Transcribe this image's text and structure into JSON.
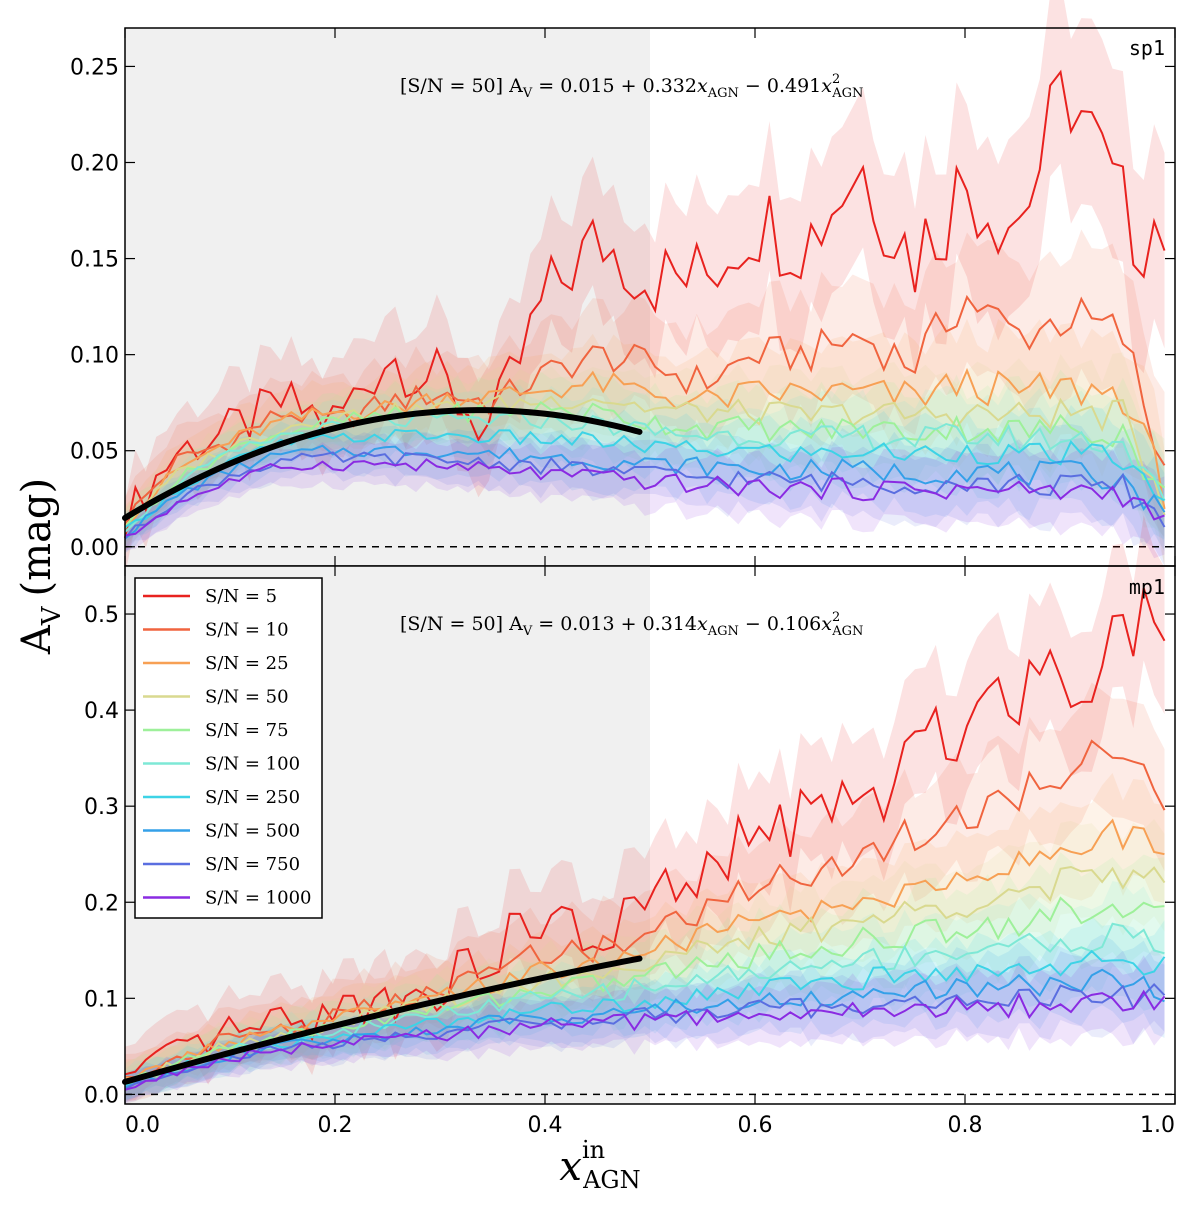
{
  "figure": {
    "ylabel_main": "A",
    "ylabel_sub": "V",
    "ylabel_unit": "(mag)",
    "xlabel_main": "x",
    "xlabel_sup": "in",
    "xlabel_sub": "AGN"
  },
  "colors": {
    "shade": "#f0f0f0",
    "fit": "#000000",
    "series": [
      "#e8221f",
      "#f0643f",
      "#f7a054",
      "#d9d98f",
      "#9ef09a",
      "#7ee8d6",
      "#3dd3e6",
      "#34a0e8",
      "#5a6ee0",
      "#8a2be2"
    ]
  },
  "chart_data": [
    {
      "type": "line",
      "panel": "sp1",
      "tag": "sp1",
      "annotation": "[S/N = 50]  A_V = 0.015 + 0.332 x_AGN − 0.491 x²_AGN",
      "equation": {
        "prefix": "[S/N = 50]  A",
        "v_sub": "V",
        "body": " = 0.015 + 0.332",
        "x1": "x",
        "x1_sub": "AGN",
        "minus": " − 0.491",
        "x2": "x",
        "x2_sup": "2",
        "x2_sub": "AGN"
      },
      "fit": {
        "a": 0.015,
        "b": 0.332,
        "c": -0.491,
        "x_range": [
          0,
          0.49
        ]
      },
      "shaded_region": [
        0,
        0.5
      ],
      "xlim": [
        0,
        1.0
      ],
      "ylim": [
        -0.01,
        0.27
      ],
      "yticks": [
        0.0,
        0.05,
        0.1,
        0.15,
        0.2,
        0.25
      ],
      "ytick_labels": [
        "0.00",
        "0.05",
        "0.10",
        "0.15",
        "0.20",
        "0.25"
      ],
      "x": [
        0,
        0.05,
        0.1,
        0.15,
        0.2,
        0.25,
        0.3,
        0.35,
        0.4,
        0.45,
        0.5,
        0.55,
        0.6,
        0.65,
        0.7,
        0.75,
        0.8,
        0.85,
        0.9,
        0.95,
        0.99
      ],
      "series": [
        {
          "name": "S/N = 5",
          "values": [
            0.015,
            0.05,
            0.06,
            0.075,
            0.065,
            0.1,
            0.085,
            0.06,
            0.13,
            0.16,
            0.14,
            0.14,
            0.17,
            0.16,
            0.2,
            0.15,
            0.19,
            0.17,
            0.24,
            0.17,
            0.17
          ],
          "band": 0.02
        },
        {
          "name": "S/N = 10",
          "values": [
            0.014,
            0.045,
            0.055,
            0.07,
            0.065,
            0.075,
            0.08,
            0.075,
            0.09,
            0.1,
            0.095,
            0.085,
            0.1,
            0.1,
            0.11,
            0.095,
            0.13,
            0.11,
            0.12,
            0.11,
            0.04
          ],
          "band": 0.015
        },
        {
          "name": "S/N = 25",
          "values": [
            0.013,
            0.04,
            0.055,
            0.065,
            0.07,
            0.072,
            0.078,
            0.078,
            0.082,
            0.085,
            0.08,
            0.075,
            0.08,
            0.08,
            0.08,
            0.078,
            0.085,
            0.08,
            0.082,
            0.08,
            0.03
          ],
          "band": 0.012
        },
        {
          "name": "S/N = 50",
          "values": [
            0.012,
            0.038,
            0.052,
            0.062,
            0.068,
            0.07,
            0.072,
            0.074,
            0.076,
            0.078,
            0.072,
            0.07,
            0.07,
            0.068,
            0.07,
            0.068,
            0.07,
            0.068,
            0.07,
            0.068,
            0.025
          ],
          "band": 0.01
        },
        {
          "name": "S/N = 75",
          "values": [
            0.011,
            0.035,
            0.05,
            0.06,
            0.065,
            0.068,
            0.07,
            0.07,
            0.072,
            0.07,
            0.065,
            0.062,
            0.062,
            0.06,
            0.062,
            0.06,
            0.062,
            0.06,
            0.062,
            0.06,
            0.025
          ],
          "band": 0.01
        },
        {
          "name": "S/N = 100",
          "values": [
            0.01,
            0.033,
            0.048,
            0.058,
            0.062,
            0.065,
            0.066,
            0.066,
            0.066,
            0.064,
            0.06,
            0.058,
            0.058,
            0.056,
            0.058,
            0.056,
            0.058,
            0.056,
            0.056,
            0.055,
            0.022
          ],
          "band": 0.009
        },
        {
          "name": "S/N = 250",
          "values": [
            0.008,
            0.03,
            0.044,
            0.054,
            0.056,
            0.058,
            0.058,
            0.057,
            0.056,
            0.055,
            0.052,
            0.05,
            0.05,
            0.048,
            0.05,
            0.048,
            0.05,
            0.048,
            0.048,
            0.046,
            0.02
          ],
          "band": 0.008
        },
        {
          "name": "S/N = 500",
          "values": [
            0.006,
            0.027,
            0.04,
            0.048,
            0.05,
            0.05,
            0.05,
            0.048,
            0.047,
            0.045,
            0.043,
            0.042,
            0.04,
            0.04,
            0.04,
            0.038,
            0.04,
            0.038,
            0.038,
            0.036,
            0.016
          ],
          "band": 0.008
        },
        {
          "name": "S/N = 750",
          "values": [
            0.005,
            0.025,
            0.037,
            0.045,
            0.046,
            0.046,
            0.045,
            0.044,
            0.042,
            0.04,
            0.038,
            0.036,
            0.035,
            0.034,
            0.034,
            0.033,
            0.034,
            0.032,
            0.032,
            0.031,
            0.014
          ],
          "band": 0.008
        },
        {
          "name": "S/N = 1000",
          "values": [
            0.004,
            0.023,
            0.034,
            0.042,
            0.043,
            0.043,
            0.042,
            0.04,
            0.038,
            0.036,
            0.034,
            0.032,
            0.031,
            0.03,
            0.03,
            0.03,
            0.03,
            0.029,
            0.029,
            0.028,
            0.012
          ],
          "band": 0.008
        }
      ]
    },
    {
      "type": "line",
      "panel": "mp1",
      "tag": "mp1",
      "annotation": "[S/N = 50]  A_V = 0.013 + 0.314 x_AGN − 0.106 x²_AGN",
      "equation": {
        "prefix": "[S/N = 50]  A",
        "v_sub": "V",
        "body": " = 0.013 + 0.314",
        "x1": "x",
        "x1_sub": "AGN",
        "minus": " − 0.106",
        "x2": "x",
        "x2_sup": "2",
        "x2_sub": "AGN"
      },
      "fit": {
        "a": 0.013,
        "b": 0.314,
        "c": -0.106,
        "x_range": [
          0,
          0.49
        ]
      },
      "shaded_region": [
        0,
        0.5
      ],
      "xlim": [
        0,
        1.0
      ],
      "ylim": [
        -0.01,
        0.55
      ],
      "yticks": [
        0.0,
        0.1,
        0.2,
        0.3,
        0.4,
        0.5
      ],
      "ytick_labels": [
        "0.0",
        "0.1",
        "0.2",
        "0.3",
        "0.4",
        "0.5"
      ],
      "xticks": [
        0.0,
        0.2,
        0.4,
        0.6,
        0.8,
        1.0
      ],
      "xtick_labels": [
        "0.0",
        "0.2",
        "0.4",
        "0.6",
        "0.8",
        "1.0"
      ],
      "x": [
        0,
        0.05,
        0.1,
        0.15,
        0.2,
        0.25,
        0.3,
        0.35,
        0.4,
        0.45,
        0.5,
        0.55,
        0.6,
        0.65,
        0.7,
        0.75,
        0.8,
        0.85,
        0.9,
        0.95,
        0.99
      ],
      "series": [
        {
          "name": "S/N = 5",
          "values": [
            0.015,
            0.04,
            0.065,
            0.07,
            0.085,
            0.1,
            0.11,
            0.15,
            0.18,
            0.16,
            0.2,
            0.22,
            0.27,
            0.29,
            0.3,
            0.34,
            0.4,
            0.43,
            0.44,
            0.48,
            0.52
          ],
          "band": 0.03
        },
        {
          "name": "S/N = 10",
          "values": [
            0.014,
            0.038,
            0.06,
            0.068,
            0.08,
            0.095,
            0.105,
            0.13,
            0.15,
            0.15,
            0.17,
            0.19,
            0.22,
            0.23,
            0.25,
            0.27,
            0.29,
            0.31,
            0.34,
            0.37,
            0.31
          ],
          "band": 0.025
        },
        {
          "name": "S/N = 25",
          "values": [
            0.013,
            0.036,
            0.055,
            0.065,
            0.077,
            0.09,
            0.1,
            0.115,
            0.13,
            0.135,
            0.15,
            0.165,
            0.18,
            0.19,
            0.2,
            0.21,
            0.23,
            0.24,
            0.26,
            0.27,
            0.25
          ],
          "band": 0.02
        },
        {
          "name": "S/N = 50",
          "values": [
            0.012,
            0.034,
            0.052,
            0.062,
            0.073,
            0.085,
            0.095,
            0.11,
            0.12,
            0.125,
            0.14,
            0.15,
            0.16,
            0.17,
            0.18,
            0.19,
            0.2,
            0.21,
            0.22,
            0.23,
            0.22
          ],
          "band": 0.02
        },
        {
          "name": "S/N = 75",
          "values": [
            0.011,
            0.032,
            0.05,
            0.06,
            0.07,
            0.08,
            0.09,
            0.1,
            0.11,
            0.115,
            0.125,
            0.135,
            0.145,
            0.15,
            0.16,
            0.165,
            0.175,
            0.18,
            0.19,
            0.2,
            0.18
          ],
          "band": 0.02
        },
        {
          "name": "S/N = 100",
          "values": [
            0.01,
            0.03,
            0.047,
            0.057,
            0.066,
            0.075,
            0.083,
            0.092,
            0.1,
            0.105,
            0.112,
            0.12,
            0.128,
            0.132,
            0.14,
            0.145,
            0.15,
            0.155,
            0.16,
            0.165,
            0.15
          ],
          "band": 0.018
        },
        {
          "name": "S/N = 250",
          "values": [
            0.009,
            0.028,
            0.044,
            0.053,
            0.06,
            0.068,
            0.075,
            0.082,
            0.088,
            0.092,
            0.098,
            0.104,
            0.11,
            0.114,
            0.12,
            0.124,
            0.128,
            0.132,
            0.136,
            0.14,
            0.13
          ],
          "band": 0.015
        },
        {
          "name": "S/N = 500",
          "values": [
            0.008,
            0.026,
            0.041,
            0.05,
            0.056,
            0.063,
            0.069,
            0.075,
            0.08,
            0.084,
            0.088,
            0.092,
            0.097,
            0.1,
            0.104,
            0.107,
            0.11,
            0.113,
            0.116,
            0.118,
            0.11
          ],
          "band": 0.015
        },
        {
          "name": "S/N = 750",
          "values": [
            0.007,
            0.025,
            0.039,
            0.048,
            0.053,
            0.06,
            0.065,
            0.07,
            0.075,
            0.078,
            0.082,
            0.085,
            0.088,
            0.09,
            0.093,
            0.095,
            0.097,
            0.1,
            0.102,
            0.104,
            0.1
          ],
          "band": 0.015
        },
        {
          "name": "S/N = 1000",
          "values": [
            0.006,
            0.024,
            0.038,
            0.046,
            0.051,
            0.057,
            0.062,
            0.067,
            0.071,
            0.074,
            0.077,
            0.08,
            0.082,
            0.084,
            0.086,
            0.088,
            0.09,
            0.092,
            0.094,
            0.096,
            0.095
          ],
          "band": 0.015
        }
      ]
    }
  ]
}
